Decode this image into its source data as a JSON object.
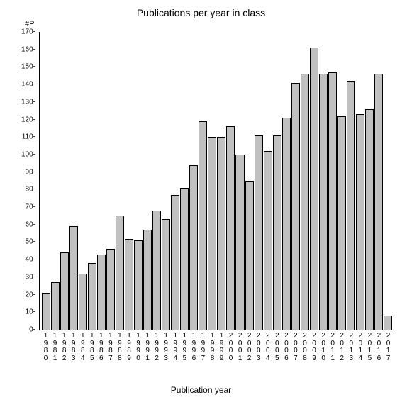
{
  "chart": {
    "type": "bar",
    "title": "Publications per year in class",
    "title_fontsize": 14,
    "ylabel": "#P",
    "xlabel": "Publication year",
    "label_fontsize": 12,
    "tick_fontsize": 10,
    "ylim": [
      0,
      170
    ],
    "ytick_step": 10,
    "categories": [
      "1980",
      "1981",
      "1982",
      "1983",
      "1984",
      "1985",
      "1986",
      "1987",
      "1988",
      "1989",
      "1990",
      "1991",
      "1992",
      "1993",
      "1994",
      "1995",
      "1996",
      "1997",
      "1998",
      "1999",
      "2000",
      "2001",
      "2002",
      "2003",
      "2004",
      "2005",
      "2006",
      "2007",
      "2008",
      "2009",
      "2010",
      "2011",
      "2012",
      "2013",
      "2014",
      "2015",
      "2016",
      "2017"
    ],
    "values": [
      21,
      27,
      44,
      59,
      32,
      38,
      43,
      46,
      65,
      52,
      51,
      57,
      68,
      63,
      77,
      81,
      94,
      119,
      110,
      110,
      116,
      100,
      85,
      111,
      102,
      111,
      121,
      141,
      146,
      161,
      146,
      147,
      122,
      142,
      123,
      126,
      146,
      8
    ],
    "bar_fill": "#c0c0c0",
    "bar_border": "#000000",
    "background_color": "#ffffff",
    "axis_color": "#000000",
    "bar_width": 1.0
  }
}
